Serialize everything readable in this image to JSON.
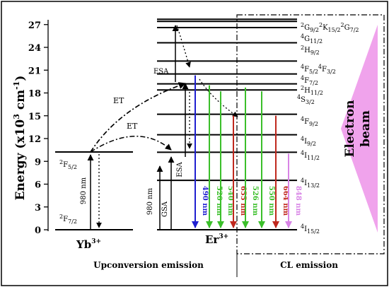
{
  "axis": {
    "ylabel": "Energy (x10",
    "ylabel_sup": "3",
    "ylabel_unit": " cm",
    "ylabel_sup2": "-1",
    "ylabel_close": ")",
    "yrange": [
      0,
      28.5
    ],
    "ticks": [
      "0",
      "3",
      "6",
      "9",
      "12",
      "15",
      "18",
      "21",
      "24",
      "27"
    ]
  },
  "yb": {
    "ion": "Yb",
    "ion_sup": "3+",
    "ground": "2F7/2",
    "excited": "2F5/2",
    "levels": [
      {
        "name": "2F7/2",
        "energy": 0
      },
      {
        "name": "2F5/2",
        "energy": 10.3
      }
    ]
  },
  "er": {
    "ion": "Er",
    "ion_sup": "3+",
    "levels": [
      {
        "label": "2G9/2 2K15/2 2G7/2",
        "energy": 27.7
      },
      {
        "label": "4G11/2",
        "energy": 26.6
      },
      {
        "label": "2H9/2",
        "energy": 24.6
      },
      {
        "label": "4F5/2 4F3/2",
        "energy": 22.2
      },
      {
        "label": "4F7/2",
        "energy": 20.5
      },
      {
        "label": "2H11/2",
        "energy": 19.2
      },
      {
        "label": "4S3/2",
        "energy": 18.4
      },
      {
        "label": "4F9/2",
        "energy": 15.2
      },
      {
        "label": "4I9/2",
        "energy": 12.5
      },
      {
        "label": "4I11/2",
        "energy": 10.2
      },
      {
        "label": "4I13/2",
        "energy": 6.5
      },
      {
        "label": "4I15/2",
        "energy": 0
      }
    ]
  },
  "labels": {
    "et": "ET",
    "esa": "ESA",
    "gsa": "GSA",
    "pump_yb": "980 nm",
    "pump_er": "980 nm",
    "electron_beam_line1": "Electron",
    "electron_beam_line2": "beam",
    "upconversion_caption": "Upconversion emission",
    "cl_caption": "CL emission"
  },
  "emissions": {
    "upconversion": [
      {
        "label": "490 nm",
        "color": "#1f1fd0"
      },
      {
        "label": "520 nm",
        "color": "#3bbf2a"
      },
      {
        "label": "540 nm",
        "color": "#3bbf2a"
      },
      {
        "label": "655 nm",
        "color": "#c0281e"
      }
    ],
    "cl": [
      {
        "label": "526 nm",
        "color": "#3bbf2a"
      },
      {
        "label": "550 nm",
        "color": "#3bbf2a"
      },
      {
        "label": "664 nm",
        "color": "#c0281e"
      },
      {
        "label": "848 nm",
        "color": "#d884e6"
      }
    ]
  },
  "colors": {
    "beam_fill": "#f0a3ec",
    "blue": "#1f1fd0",
    "green": "#3bbf2a",
    "red": "#c0281e",
    "violet": "#d884e6"
  }
}
